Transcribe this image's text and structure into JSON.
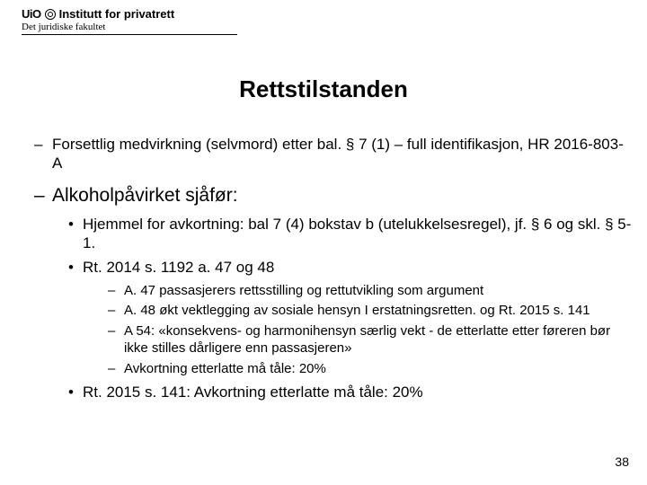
{
  "header": {
    "uio": "UiO",
    "institute": "Institutt for privatrett",
    "faculty": "Det juridiske fakultet"
  },
  "title": "Rettstilstanden",
  "bullets": {
    "b1": "Forsettlig medvirkning (selvmord) etter bal. § 7 (1)  – full identifikasjon, HR 2016-803-A",
    "b2": "Alkoholpåvirket sjåfør:",
    "b2_1": "Hjemmel for avkortning: bal  7 (4) bokstav b (utelukkelsesregel),  jf. § 6 og skl. § 5-1.",
    "b2_2": "Rt. 2014 s. 1192 a. 47 og 48",
    "b2_2_1": "A. 47 passasjerers rettsstilling og rettutvikling som argument",
    "b2_2_2": "A. 48 økt vektlegging av sosiale hensyn I erstatningsretten.  og Rt. 2015 s. 141",
    "b2_2_3": "A 54: «konsekvens- og harmonihensyn særlig vekt - de etterlatte etter føreren bør ikke stilles dårligere enn passasjeren»",
    "b2_2_4": "Avkortning etterlatte må tåle: 20%",
    "b2_3": "Rt. 2015 s. 141: Avkortning etterlatte må tåle: 20%"
  },
  "pagenum": "38"
}
